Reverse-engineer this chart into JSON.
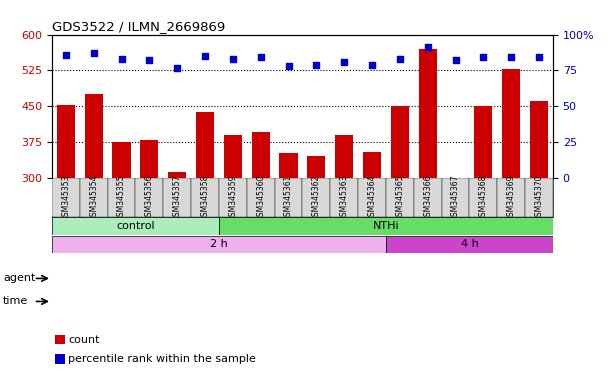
{
  "title": "GDS3522 / ILMN_2669869",
  "categories": [
    "GSM345353",
    "GSM345354",
    "GSM345355",
    "GSM345356",
    "GSM345357",
    "GSM345358",
    "GSM345359",
    "GSM345360",
    "GSM345361",
    "GSM345362",
    "GSM345363",
    "GSM345364",
    "GSM345365",
    "GSM345366",
    "GSM345367",
    "GSM345368",
    "GSM345369",
    "GSM345370"
  ],
  "bar_values": [
    452,
    475,
    375,
    380,
    313,
    438,
    390,
    395,
    352,
    345,
    390,
    355,
    450,
    570,
    295,
    450,
    527,
    460
  ],
  "dot_values": [
    86,
    87,
    83,
    82,
    77,
    85,
    83,
    84,
    78,
    79,
    81,
    79,
    83,
    91,
    82,
    84,
    84,
    84
  ],
  "bar_color": "#cc0000",
  "dot_color": "#0000cc",
  "left_ylim": [
    300,
    600
  ],
  "left_yticks": [
    300,
    375,
    450,
    525,
    600
  ],
  "right_ylim": [
    0,
    100
  ],
  "right_yticks": [
    0,
    25,
    50,
    75,
    100
  ],
  "right_yticklabels": [
    "0",
    "25",
    "50",
    "75",
    "100%"
  ],
  "hlines": [
    375,
    450,
    525
  ],
  "agent_groups": [
    {
      "label": "control",
      "start": 0,
      "end": 5,
      "color": "#aaeebb"
    },
    {
      "label": "NTHi",
      "start": 6,
      "end": 17,
      "color": "#66dd66"
    }
  ],
  "time_groups": [
    {
      "label": "2 h",
      "start": 0,
      "end": 11,
      "color": "#eeb0ee"
    },
    {
      "label": "4 h",
      "start": 12,
      "end": 17,
      "color": "#cc44cc"
    }
  ],
  "agent_label": "agent",
  "time_label": "time",
  "legend_count": "count",
  "legend_percentile": "percentile rank within the sample",
  "bar_color_label": "#cc0000",
  "dot_color_label": "#0000cc",
  "left_tick_color": "#cc0000",
  "right_tick_color": "#0000cc",
  "tick_area_color": "#cccccc",
  "bg_color": "#ffffff"
}
